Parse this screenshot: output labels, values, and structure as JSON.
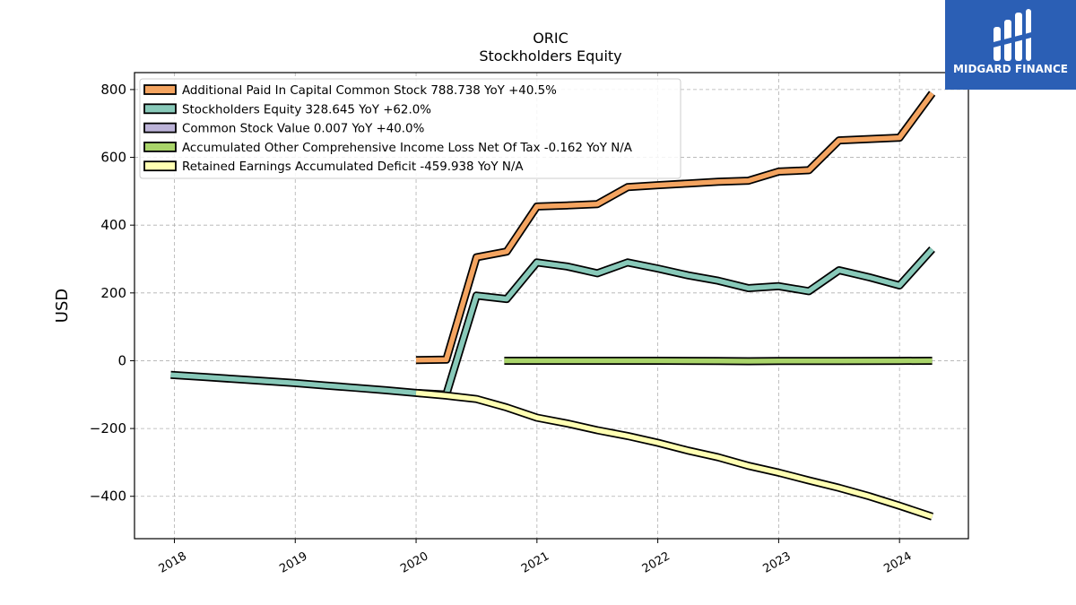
{
  "chart_data": {
    "type": "line",
    "title": "ORIC",
    "subtitle": "Stockholders  Equity",
    "xlabel": "",
    "ylabel": "USD",
    "ylim": [
      -525,
      850
    ],
    "xlim": [
      2017.67,
      2024.57
    ],
    "yticks": [
      800,
      600,
      400,
      200,
      0,
      -200,
      -400
    ],
    "ytick_labels": [
      "800",
      "600",
      "400",
      "200",
      "0",
      "−200",
      "−400"
    ],
    "xticks": [
      2018,
      2019,
      2020,
      2021,
      2022,
      2023,
      2024
    ],
    "xtick_labels": [
      "2018",
      "2019",
      "2020",
      "2021",
      "2022",
      "2023",
      "2024"
    ],
    "grid": true,
    "legend_position": "top-left",
    "series": [
      {
        "name": "Additional Paid In Capital Common Stock",
        "legend": "Additional Paid In Capital Common Stock  788.738 YoY +40.5%",
        "color": "#f4a460",
        "x": [
          2020.0,
          2020.25,
          2020.5,
          2020.75,
          2021.0,
          2021.25,
          2021.5,
          2021.75,
          2022.0,
          2022.25,
          2022.5,
          2022.75,
          2023.0,
          2023.25,
          2023.5,
          2023.75,
          2024.0,
          2024.27
        ],
        "y": [
          2,
          3,
          305,
          322,
          455,
          458,
          462,
          512,
          518,
          523,
          528,
          531,
          558,
          562,
          650,
          654,
          658,
          789
        ]
      },
      {
        "name": "Stockholders Equity",
        "legend": "Stockholders Equity  328.645 YoY +62.0%",
        "color": "#88c9b9",
        "x": [
          2017.97,
          2018.25,
          2018.5,
          2018.75,
          2019.0,
          2019.25,
          2019.5,
          2019.75,
          2020.0,
          2020.25,
          2020.5,
          2020.75,
          2021.0,
          2021.25,
          2021.5,
          2021.75,
          2022.0,
          2022.25,
          2022.5,
          2022.75,
          2023.0,
          2023.25,
          2023.5,
          2023.75,
          2024.0,
          2024.27
        ],
        "y": [
          -42,
          -48,
          -54,
          -60,
          -66,
          -73,
          -80,
          -87,
          -95,
          -100,
          192,
          182,
          290,
          278,
          258,
          290,
          272,
          252,
          236,
          214,
          220,
          205,
          267,
          246,
          222,
          329
        ]
      },
      {
        "name": "Common Stock Value",
        "legend": "Common Stock Value  0.007 YoY +40.0%",
        "color": "#bcb3d8",
        "x": [],
        "y": []
      },
      {
        "name": "Accumulated Other Comprehensive Income Loss Net Of Tax",
        "legend": "Accumulated Other Comprehensive Income Loss Net Of Tax  -0.162 YoY N/A",
        "color": "#a9d46a",
        "x": [
          2020.73,
          2021.0,
          2021.5,
          2022.0,
          2022.5,
          2022.75,
          2023.0,
          2023.5,
          2024.0,
          2024.27
        ],
        "y": [
          0,
          0,
          0,
          0,
          -1,
          -1.5,
          -1,
          -1,
          -0.5,
          -0.2
        ]
      },
      {
        "name": "Retained Earnings Accumulated Deficit",
        "legend": "Retained Earnings Accumulated Deficit  -459.938 YoY N/A",
        "color": "#ffffb3",
        "x": [
          2020.0,
          2020.25,
          2020.5,
          2020.75,
          2021.0,
          2021.25,
          2021.5,
          2021.75,
          2022.0,
          2022.25,
          2022.5,
          2022.75,
          2023.0,
          2023.25,
          2023.5,
          2023.75,
          2024.0,
          2024.27
        ],
        "y": [
          -95,
          -103,
          -113,
          -138,
          -168,
          -185,
          -205,
          -222,
          -242,
          -265,
          -285,
          -310,
          -330,
          -353,
          -375,
          -400,
          -428,
          -460
        ]
      }
    ]
  },
  "logo": {
    "text": "MIDGARD FINANCE",
    "background": "#2b5fb5"
  }
}
